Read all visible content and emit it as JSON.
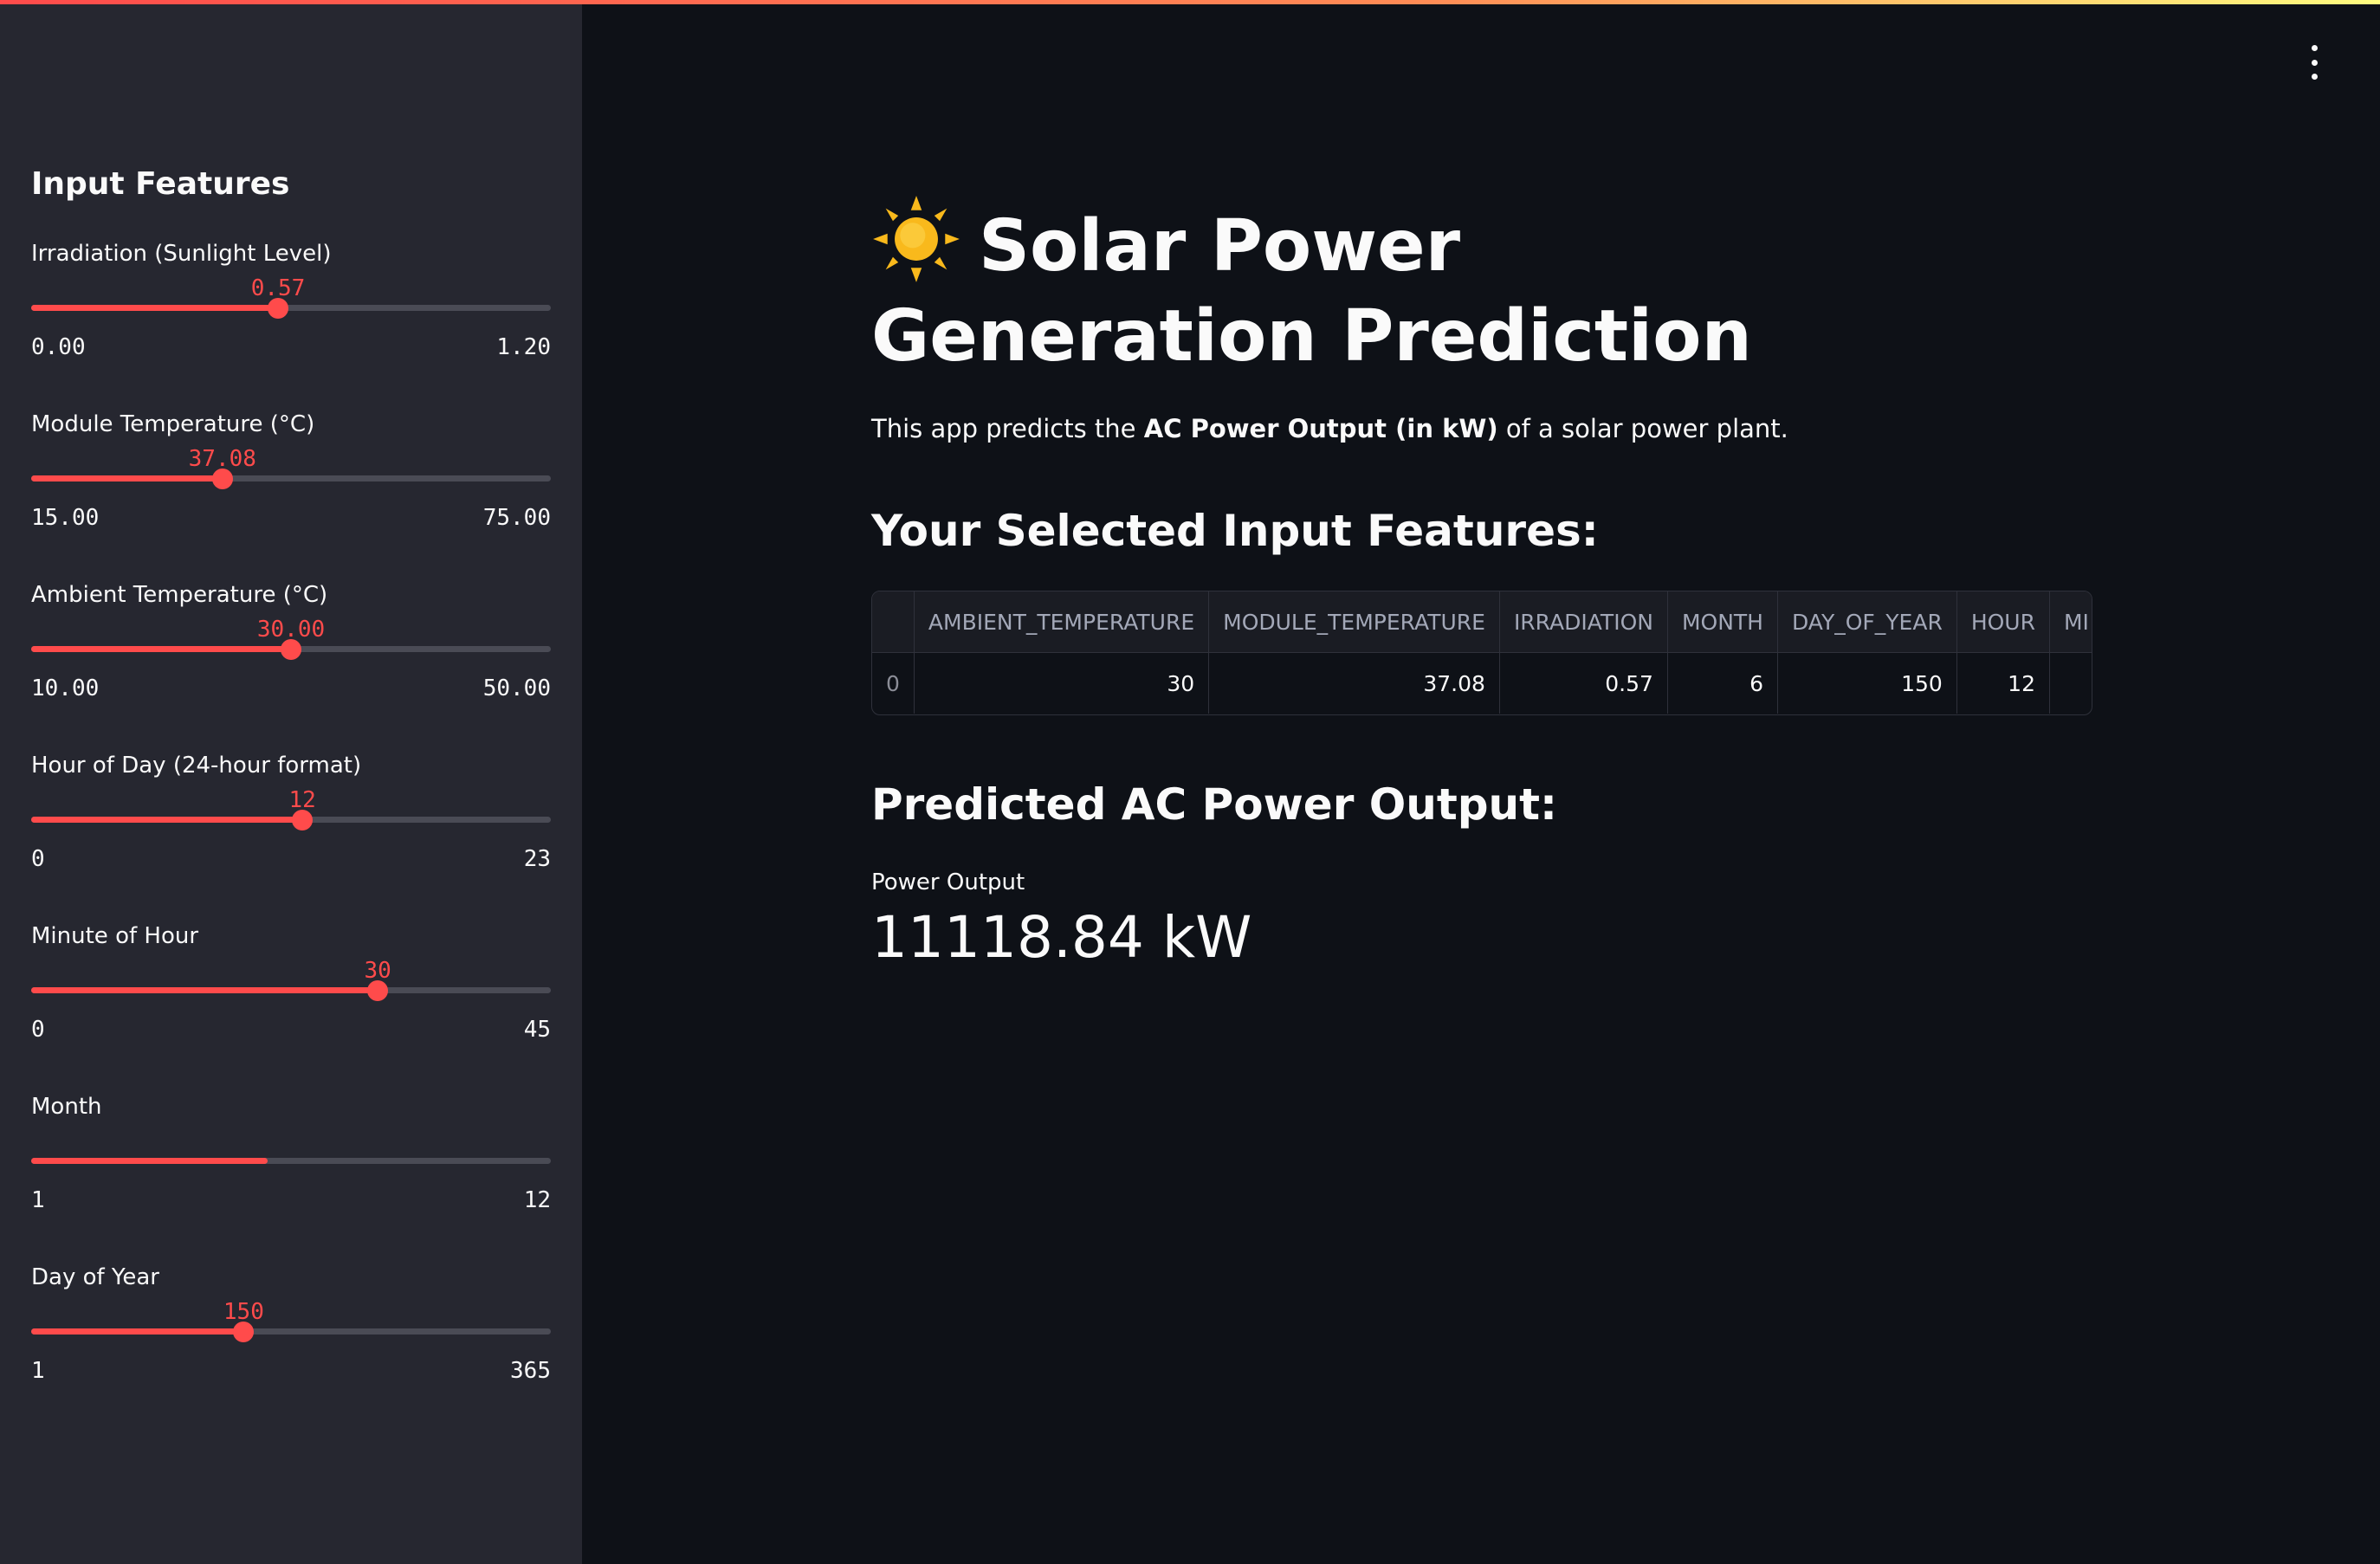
{
  "sidebar": {
    "title": "Input Features",
    "sliders": [
      {
        "label": "Irradiation (Sunlight Level)",
        "value": "0.57",
        "min": "0.00",
        "max": "1.20",
        "fraction": 0.475
      },
      {
        "label": "Module Temperature (°C)",
        "value": "37.08",
        "min": "15.00",
        "max": "75.00",
        "fraction": 0.368
      },
      {
        "label": "Ambient Temperature (°C)",
        "value": "30.00",
        "min": "10.00",
        "max": "50.00",
        "fraction": 0.5
      },
      {
        "label": "Hour of Day (24-hour format)",
        "value": "12",
        "min": "0",
        "max": "23",
        "fraction": 0.522
      },
      {
        "label": "Minute of Hour",
        "value": "30",
        "min": "0",
        "max": "45",
        "fraction": 0.667
      },
      {
        "label": "Month",
        "value": "",
        "min": "1",
        "max": "12",
        "fraction": 0.455
      },
      {
        "label": "Day of Year",
        "value": "150",
        "min": "1",
        "max": "365",
        "fraction": 0.409
      }
    ]
  },
  "main": {
    "title_line": "Solar Power Generation Prediction",
    "intro_prefix": "This app predicts the",
    "intro_bold": "AC Power Output (in kW)",
    "intro_suffix": "of a solar power plant.",
    "features_heading": "Your Selected Input Features:",
    "table": {
      "columns": [
        "",
        "AMBIENT_TEMPERATURE",
        "MODULE_TEMPERATURE",
        "IRRADIATION",
        "MONTH",
        "DAY_OF_YEAR",
        "HOUR",
        "MI"
      ],
      "rows": [
        [
          "0",
          "30",
          "37.08",
          "0.57",
          "6",
          "150",
          "12",
          ""
        ]
      ]
    },
    "prediction_heading": "Predicted AC Power Output:",
    "metric_label": "Power Output",
    "metric_value": "11118.84 kW"
  },
  "colors": {
    "accent": "#ff4b4b",
    "sidebar_bg": "#262730",
    "main_bg": "#0e1117",
    "track": "#4a4b55",
    "sun": "#f9b91c"
  },
  "icons": {
    "sun": "sun-icon",
    "menu": "vertical-ellipsis-icon"
  }
}
